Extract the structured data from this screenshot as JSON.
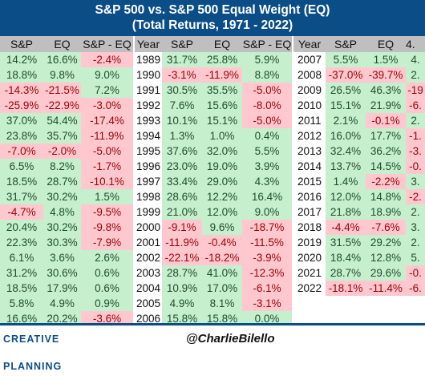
{
  "title": {
    "line1": "S&P 500 vs. S&P 500 Equal Weight (EQ)",
    "line2": "(Total Returns, 1971 - 2022)"
  },
  "headers": {
    "col1": [
      "S&P",
      "EQ",
      "S&P - EQ"
    ],
    "col2": [
      "Year",
      "S&P",
      "EQ",
      "S&P - EQ"
    ],
    "col3": [
      "Year",
      "S&P",
      "EQ",
      "4."
    ]
  },
  "block1": [
    [
      "14.2%",
      "16.6%",
      "-2.4%"
    ],
    [
      "18.8%",
      "9.8%",
      "9.0%"
    ],
    [
      "-14.3%",
      "-21.5%",
      "7.2%"
    ],
    [
      "-25.9%",
      "-22.9%",
      "-3.0%"
    ],
    [
      "37.0%",
      "54.4%",
      "-17.4%"
    ],
    [
      "23.8%",
      "35.7%",
      "-11.9%"
    ],
    [
      "-7.0%",
      "-2.0%",
      "-5.0%"
    ],
    [
      "6.5%",
      "8.2%",
      "-1.7%"
    ],
    [
      "18.5%",
      "28.7%",
      "-10.1%"
    ],
    [
      "31.7%",
      "30.2%",
      "1.5%"
    ],
    [
      "-4.7%",
      "4.8%",
      "-9.5%"
    ],
    [
      "20.4%",
      "30.2%",
      "-9.8%"
    ],
    [
      "22.3%",
      "30.3%",
      "-7.9%"
    ],
    [
      "6.1%",
      "3.6%",
      "2.6%"
    ],
    [
      "31.2%",
      "30.6%",
      "0.6%"
    ],
    [
      "18.5%",
      "17.9%",
      "0.6%"
    ],
    [
      "5.8%",
      "4.9%",
      "0.9%"
    ],
    [
      "16.6%",
      "20.2%",
      "-3.6%"
    ]
  ],
  "block2": [
    [
      "1989",
      "31.7%",
      "25.8%",
      "5.9%"
    ],
    [
      "1990",
      "-3.1%",
      "-11.9%",
      "8.8%"
    ],
    [
      "1991",
      "30.5%",
      "35.5%",
      "-5.0%"
    ],
    [
      "1992",
      "7.6%",
      "15.6%",
      "-8.0%"
    ],
    [
      "1993",
      "10.1%",
      "15.1%",
      "-5.0%"
    ],
    [
      "1994",
      "1.3%",
      "1.0%",
      "0.4%"
    ],
    [
      "1995",
      "37.6%",
      "32.0%",
      "5.5%"
    ],
    [
      "1996",
      "23.0%",
      "19.0%",
      "3.9%"
    ],
    [
      "1997",
      "33.4%",
      "29.0%",
      "4.3%"
    ],
    [
      "1998",
      "28.6%",
      "12.2%",
      "16.4%"
    ],
    [
      "1999",
      "21.0%",
      "12.0%",
      "9.0%"
    ],
    [
      "2000",
      "-9.1%",
      "9.6%",
      "-18.7%"
    ],
    [
      "2001",
      "-11.9%",
      "-0.4%",
      "-11.5%"
    ],
    [
      "2002",
      "-22.1%",
      "-18.2%",
      "-3.9%"
    ],
    [
      "2003",
      "28.7%",
      "41.0%",
      "-12.3%"
    ],
    [
      "2004",
      "10.9%",
      "17.0%",
      "-6.1%"
    ],
    [
      "2005",
      "4.9%",
      "8.1%",
      "-3.1%"
    ],
    [
      "2006",
      "15.8%",
      "15.8%",
      "0.0%"
    ]
  ],
  "block3": [
    [
      "2007",
      "5.5%",
      "1.5%",
      "4."
    ],
    [
      "2008",
      "-37.0%",
      "-39.7%",
      "2."
    ],
    [
      "2009",
      "26.5%",
      "46.3%",
      "-19"
    ],
    [
      "2010",
      "15.1%",
      "21.9%",
      "-6."
    ],
    [
      "2011",
      "2.1%",
      "-0.1%",
      "2."
    ],
    [
      "2012",
      "16.0%",
      "17.7%",
      "-1."
    ],
    [
      "2013",
      "32.4%",
      "36.2%",
      "-3."
    ],
    [
      "2014",
      "13.7%",
      "14.5%",
      "-0."
    ],
    [
      "2015",
      "1.4%",
      "-2.2%",
      "3."
    ],
    [
      "2016",
      "12.0%",
      "14.8%",
      "-2."
    ],
    [
      "2017",
      "21.8%",
      "18.9%",
      "2."
    ],
    [
      "2018",
      "-4.4%",
      "-7.6%",
      "3."
    ],
    [
      "2019",
      "31.5%",
      "29.2%",
      "2."
    ],
    [
      "2020",
      "18.4%",
      "12.8%",
      "5."
    ],
    [
      "2021",
      "28.7%",
      "29.6%",
      "-0."
    ],
    [
      "2022",
      "-18.1%",
      "-11.4%",
      "-6."
    ]
  ],
  "footer": {
    "logo_text": "CREATIVE PLANNING",
    "handle": "@CharlieBilello"
  },
  "colors": {
    "positive_bg": "#c6efce",
    "negative_bg": "#ffc7ce",
    "title_bg": "#0b4d87",
    "header_bg": "#bfbfbf"
  }
}
